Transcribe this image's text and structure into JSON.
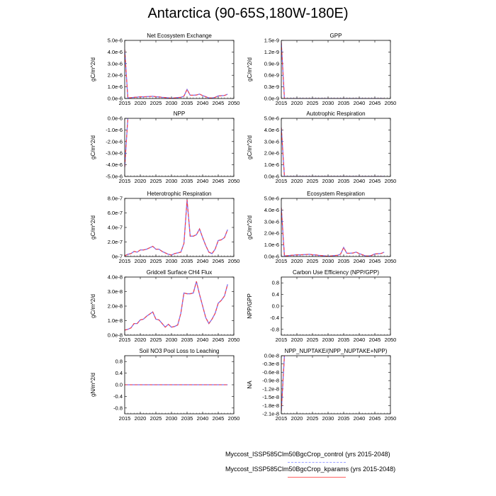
{
  "title": "Antarctica (90-65S,180W-180E)",
  "colors": {
    "control": "#7a6cf0",
    "kparams": "#ff4040",
    "axis": "#000000"
  },
  "legend": {
    "entries": [
      {
        "label": "Myccost_ISSP585Clm50BgcCrop_control (yrs 2015-2048)",
        "color": "#9aa0ff",
        "style": "dashed"
      },
      {
        "label": "Myccost_ISSP585Clm50BgcCrop_kparams (yrs 2015-2048)",
        "color": "#ff6060",
        "style": "solid"
      }
    ]
  },
  "chart_data": [
    {
      "type": "line",
      "title": "Net Ecosystem Exchange",
      "ylabel": "gC/m^2/d",
      "xlim": [
        2015,
        2050
      ],
      "ylim": [
        0,
        5e-06
      ],
      "xticks": [
        "2015",
        "2020",
        "2025",
        "2030",
        "2035",
        "2040",
        "2045",
        "2050"
      ],
      "yticks": [
        "0.0e-6",
        "1.0e-6",
        "2.0e-6",
        "3.0e-6",
        "4.0e-6",
        "5.0e-6"
      ],
      "ytick_values": [
        0,
        1e-06,
        2e-06,
        3e-06,
        4e-06,
        5e-06
      ],
      "x": [
        2015,
        2016,
        2017,
        2018,
        2019,
        2020,
        2021,
        2022,
        2023,
        2024,
        2025,
        2026,
        2027,
        2028,
        2029,
        2030,
        2031,
        2032,
        2033,
        2034,
        2035,
        2036,
        2037,
        2038,
        2039,
        2040,
        2041,
        2042,
        2043,
        2044,
        2045,
        2046,
        2047,
        2048
      ],
      "series": [
        {
          "name": "control",
          "values": [
            4.2e-06,
            5e-08,
            7e-08,
            1e-07,
            1.2e-07,
            1.5e-07,
            1.4e-07,
            1.6e-07,
            1.7e-07,
            1.9e-07,
            1.5e-07,
            1.4e-07,
            1e-07,
            8e-08,
            5e-08,
            2e-08,
            5e-08,
            8e-08,
            1e-07,
            2e-07,
            7.8e-07,
            2.8e-07,
            2.8e-07,
            3e-07,
            3.8e-07,
            2.5e-07,
            1.5e-07,
            5e-08,
            4e-08,
            1e-07,
            2.2e-07,
            2.4e-07,
            2.6e-07,
            3.7e-07
          ]
        },
        {
          "name": "kparams",
          "values": [
            4.2e-06,
            5e-08,
            7e-08,
            1e-07,
            1.2e-07,
            1.5e-07,
            1.4e-07,
            1.6e-07,
            1.7e-07,
            1.9e-07,
            1.5e-07,
            1.4e-07,
            1e-07,
            8e-08,
            5e-08,
            2e-08,
            5e-08,
            8e-08,
            1e-07,
            2e-07,
            7.8e-07,
            2.8e-07,
            2.8e-07,
            3e-07,
            3.8e-07,
            2.5e-07,
            1.5e-07,
            5e-08,
            4e-08,
            1e-07,
            2.2e-07,
            2.4e-07,
            2.6e-07,
            3.7e-07
          ]
        }
      ]
    },
    {
      "type": "line",
      "title": "GPP",
      "ylabel": "gC/m^2/d",
      "xlim": [
        2015,
        2050
      ],
      "ylim": [
        0,
        1.5e-09
      ],
      "xticks": [
        "2015",
        "2020",
        "2025",
        "2030",
        "2035",
        "2040",
        "2045",
        "2050"
      ],
      "yticks": [
        "0.0e-9",
        "0.3e-9",
        "0.6e-9",
        "0.9e-9",
        "1.2e-9",
        "1.5e-9"
      ],
      "ytick_values": [
        0,
        3e-10,
        6e-10,
        9e-10,
        1.2e-09,
        1.5e-09
      ],
      "x": [
        2015,
        2016,
        2020,
        2025,
        2030,
        2035,
        2040,
        2045,
        2048
      ],
      "series": [
        {
          "name": "control",
          "values": [
            1.45e-09,
            0,
            0,
            0,
            0,
            0,
            0,
            0,
            0
          ]
        },
        {
          "name": "kparams",
          "values": [
            1.45e-09,
            0,
            0,
            0,
            0,
            0,
            0,
            0,
            0
          ]
        }
      ]
    },
    {
      "type": "line",
      "title": "NPP",
      "ylabel": "gC/m^2/d",
      "xlim": [
        2015,
        2050
      ],
      "ylim": [
        -5e-06,
        0
      ],
      "xticks": [
        "2015",
        "2020",
        "2025",
        "2030",
        "2035",
        "2040",
        "2045",
        "2050"
      ],
      "yticks": [
        "-5.0e-6",
        "-4.0e-6",
        "-3.0e-6",
        "-2.0e-6",
        "-1.0e-6",
        "0.0e-6"
      ],
      "ytick_values": [
        -5e-06,
        -4e-06,
        -3e-06,
        -2e-06,
        -1e-06,
        0
      ],
      "x": [
        2015,
        2016
      ],
      "series": [
        {
          "name": "control",
          "values": [
            -4.2e-06,
            0
          ]
        },
        {
          "name": "kparams",
          "values": [
            -4.2e-06,
            0
          ]
        }
      ]
    },
    {
      "type": "line",
      "title": "Autotrophic Respiration",
      "ylabel": "gC/m^2/d",
      "xlim": [
        2015,
        2050
      ],
      "ylim": [
        0,
        5e-06
      ],
      "xticks": [
        "2015",
        "2020",
        "2025",
        "2030",
        "2035",
        "2040",
        "2045",
        "2050"
      ],
      "yticks": [
        "0.0e-6",
        "1.0e-6",
        "2.0e-6",
        "3.0e-6",
        "4.0e-6",
        "5.0e-6"
      ],
      "ytick_values": [
        0,
        1e-06,
        2e-06,
        3e-06,
        4e-06,
        5e-06
      ],
      "x": [
        2015,
        2016,
        2020,
        2025,
        2030,
        2035,
        2040,
        2045,
        2048
      ],
      "series": [
        {
          "name": "control",
          "values": [
            4.2e-06,
            0,
            0,
            0,
            0,
            0,
            0,
            0,
            0
          ]
        },
        {
          "name": "kparams",
          "values": [
            4.2e-06,
            0,
            0,
            0,
            0,
            0,
            0,
            0,
            0
          ]
        }
      ]
    },
    {
      "type": "line",
      "title": "Heterotrophic Respiration",
      "ylabel": "gC/m^2/d",
      "xlim": [
        2015,
        2050
      ],
      "ylim": [
        0,
        8e-07
      ],
      "xticks": [
        "2015",
        "2020",
        "2025",
        "2030",
        "2035",
        "2040",
        "2045",
        "2050"
      ],
      "yticks": [
        "0e-7",
        "2.0e-7",
        "4.0e-7",
        "6.0e-7",
        "8.0e-7"
      ],
      "ytick_values": [
        0,
        2e-07,
        4e-07,
        6e-07,
        8e-07
      ],
      "x": [
        2015,
        2016,
        2017,
        2018,
        2019,
        2020,
        2021,
        2022,
        2023,
        2024,
        2025,
        2026,
        2027,
        2028,
        2029,
        2030,
        2031,
        2032,
        2033,
        2034,
        2035,
        2036,
        2037,
        2038,
        2039,
        2040,
        2041,
        2042,
        2043,
        2044,
        2045,
        2046,
        2047,
        2048
      ],
      "series": [
        {
          "name": "control",
          "values": [
            1e-08,
            3e-08,
            4e-08,
            7e-08,
            6e-08,
            9e-08,
            9e-08,
            1e-07,
            1.2e-07,
            1.4e-07,
            1e-07,
            1e-07,
            7e-08,
            5e-08,
            3e-08,
            2e-08,
            4e-08,
            5e-08,
            6e-08,
            1.8e-07,
            7.8e-07,
            2.8e-07,
            2.8e-07,
            3e-07,
            3.8e-07,
            2.6e-07,
            1.5e-07,
            6e-08,
            4e-08,
            1e-07,
            2.2e-07,
            2.3e-07,
            2.6e-07,
            3.7e-07
          ]
        },
        {
          "name": "kparams",
          "values": [
            1e-08,
            3e-08,
            4e-08,
            7e-08,
            6e-08,
            9e-08,
            9e-08,
            1e-07,
            1.2e-07,
            1.4e-07,
            1e-07,
            1e-07,
            7e-08,
            5e-08,
            3e-08,
            2e-08,
            4e-08,
            5e-08,
            6e-08,
            1.8e-07,
            7.8e-07,
            2.8e-07,
            2.8e-07,
            3e-07,
            3.8e-07,
            2.6e-07,
            1.5e-07,
            6e-08,
            4e-08,
            1e-07,
            2.2e-07,
            2.3e-07,
            2.6e-07,
            3.7e-07
          ]
        }
      ]
    },
    {
      "type": "line",
      "title": "Ecosystem Respiration",
      "ylabel": "gC/m^2/d",
      "xlim": [
        2015,
        2050
      ],
      "ylim": [
        0,
        5e-06
      ],
      "xticks": [
        "2015",
        "2020",
        "2025",
        "2030",
        "2035",
        "2040",
        "2045",
        "2050"
      ],
      "yticks": [
        "0.0e-6",
        "1.0e-6",
        "2.0e-6",
        "3.0e-6",
        "4.0e-6",
        "5.0e-6"
      ],
      "ytick_values": [
        0,
        1e-06,
        2e-06,
        3e-06,
        4e-06,
        5e-06
      ],
      "x": [
        2015,
        2016,
        2017,
        2018,
        2019,
        2020,
        2021,
        2022,
        2023,
        2024,
        2025,
        2026,
        2027,
        2028,
        2029,
        2030,
        2031,
        2032,
        2033,
        2034,
        2035,
        2036,
        2037,
        2038,
        2039,
        2040,
        2041,
        2042,
        2043,
        2044,
        2045,
        2046,
        2047,
        2048
      ],
      "series": [
        {
          "name": "control",
          "values": [
            4.2e-06,
            5e-08,
            7e-08,
            1e-07,
            1.2e-07,
            1.5e-07,
            1.4e-07,
            1.6e-07,
            1.7e-07,
            1.9e-07,
            1.5e-07,
            1.4e-07,
            1e-07,
            8e-08,
            5e-08,
            2e-08,
            5e-08,
            8e-08,
            1e-07,
            2e-07,
            7.8e-07,
            2.8e-07,
            2.8e-07,
            3e-07,
            3.8e-07,
            2.5e-07,
            1.5e-07,
            5e-08,
            4e-08,
            1e-07,
            2.2e-07,
            2.4e-07,
            2.6e-07,
            3.7e-07
          ]
        },
        {
          "name": "kparams",
          "values": [
            4.2e-06,
            5e-08,
            7e-08,
            1e-07,
            1.2e-07,
            1.5e-07,
            1.4e-07,
            1.6e-07,
            1.7e-07,
            1.9e-07,
            1.5e-07,
            1.4e-07,
            1e-07,
            8e-08,
            5e-08,
            2e-08,
            5e-08,
            8e-08,
            1e-07,
            2e-07,
            7.8e-07,
            2.8e-07,
            2.8e-07,
            3e-07,
            3.8e-07,
            2.5e-07,
            1.5e-07,
            5e-08,
            4e-08,
            1e-07,
            2.2e-07,
            2.4e-07,
            2.6e-07,
            3.7e-07
          ]
        }
      ]
    },
    {
      "type": "line",
      "title": "Gridcell Surface CH4 Flux",
      "ylabel": "gC/m^2/d",
      "xlim": [
        2015,
        2050
      ],
      "ylim": [
        0,
        4e-08
      ],
      "xticks": [
        "2015",
        "2020",
        "2025",
        "2030",
        "2035",
        "2040",
        "2045",
        "2050"
      ],
      "yticks": [
        "0.0e-8",
        "1.0e-8",
        "2.0e-8",
        "3.0e-8",
        "4.0e-8"
      ],
      "ytick_values": [
        0,
        1e-08,
        2e-08,
        3e-08,
        4e-08
      ],
      "x": [
        2015,
        2016,
        2017,
        2018,
        2019,
        2020,
        2021,
        2022,
        2023,
        2024,
        2025,
        2026,
        2027,
        2028,
        2029,
        2030,
        2031,
        2032,
        2033,
        2034,
        2035,
        2036,
        2037,
        2038,
        2039,
        2040,
        2041,
        2042,
        2043,
        2044,
        2045,
        2046,
        2047,
        2048
      ],
      "series": [
        {
          "name": "control",
          "values": [
            3.5e-09,
            4e-09,
            5e-09,
            8e-09,
            8e-09,
            1.05e-08,
            1.1e-08,
            1.3e-08,
            1.45e-08,
            1.6e-08,
            1.1e-08,
            1.05e-08,
            8e-09,
            5.5e-09,
            7.5e-09,
            5.5e-09,
            6e-09,
            7e-09,
            1.5e-08,
            2.9e-08,
            2.85e-08,
            2.85e-08,
            2.9e-08,
            3.7e-08,
            2.8e-08,
            2e-08,
            1.2e-08,
            8e-09,
            1.1e-08,
            1.5e-08,
            2.2e-08,
            2.4e-08,
            2.7e-08,
            3.5e-08
          ]
        },
        {
          "name": "kparams",
          "values": [
            3.5e-09,
            4e-09,
            5e-09,
            8e-09,
            8e-09,
            1.05e-08,
            1.1e-08,
            1.3e-08,
            1.45e-08,
            1.6e-08,
            1.1e-08,
            1.05e-08,
            8e-09,
            5.5e-09,
            7.5e-09,
            5.5e-09,
            6e-09,
            7e-09,
            1.5e-08,
            2.9e-08,
            2.85e-08,
            2.85e-08,
            2.9e-08,
            3.7e-08,
            2.8e-08,
            2e-08,
            1.2e-08,
            8e-09,
            1.1e-08,
            1.5e-08,
            2.2e-08,
            2.4e-08,
            2.7e-08,
            3.5e-08
          ]
        }
      ]
    },
    {
      "type": "line",
      "title": "Carbon Use Efficiency (NPP/GPP)",
      "ylabel": "NPP/GPP",
      "xlim": [
        2015,
        2050
      ],
      "ylim": [
        -1,
        1
      ],
      "xticks": [
        "2015",
        "2020",
        "2025",
        "2030",
        "2035",
        "2040",
        "2045",
        "2050"
      ],
      "yticks": [
        "-0.8",
        "-0.4",
        "0.0",
        "0.4",
        "0.8"
      ],
      "ytick_values": [
        -0.8,
        -0.4,
        0,
        0.4,
        0.8
      ],
      "x": [],
      "series": []
    },
    {
      "type": "line",
      "title": "Soil NO3 Pool Loss to Leaching",
      "ylabel": "gN/m^2/d",
      "xlim": [
        2015,
        2050
      ],
      "ylim": [
        -1,
        1
      ],
      "xticks": [
        "2015",
        "2020",
        "2025",
        "2030",
        "2035",
        "2040",
        "2045",
        "2050"
      ],
      "yticks": [
        "-0.8",
        "-0.4",
        "0.0",
        "0.4",
        "0.8"
      ],
      "ytick_values": [
        -0.8,
        -0.4,
        0,
        0.4,
        0.8
      ],
      "x": [
        2015,
        2048
      ],
      "series": [
        {
          "name": "control",
          "values": [
            0,
            0
          ]
        },
        {
          "name": "kparams",
          "values": [
            0,
            0
          ]
        }
      ]
    },
    {
      "type": "line",
      "title": "NPP_NUPTAKE/(NPP_NUPTAKE+NPP)",
      "ylabel": "NA",
      "xlim": [
        2015,
        2050
      ],
      "ylim": [
        -2.1e-08,
        0
      ],
      "xticks": [
        "2015",
        "2020",
        "2025",
        "2030",
        "2035",
        "2040",
        "2045",
        "2050"
      ],
      "yticks": [
        "-2.1e-8",
        "-1.8e-8",
        "-1.5e-8",
        "-1.2e-8",
        "-0.9e-8",
        "-0.6e-8",
        "-0.3e-8",
        "0.0e-8"
      ],
      "ytick_values": [
        -2.1e-08,
        -1.8e-08,
        -1.5e-08,
        -1.2e-08,
        -9e-09,
        -6e-09,
        -3e-09,
        0
      ],
      "x": [
        2015,
        2016
      ],
      "series": [
        {
          "name": "control",
          "values": [
            -2e-08,
            0
          ]
        },
        {
          "name": "kparams",
          "values": [
            -2e-08,
            0
          ]
        }
      ]
    }
  ]
}
